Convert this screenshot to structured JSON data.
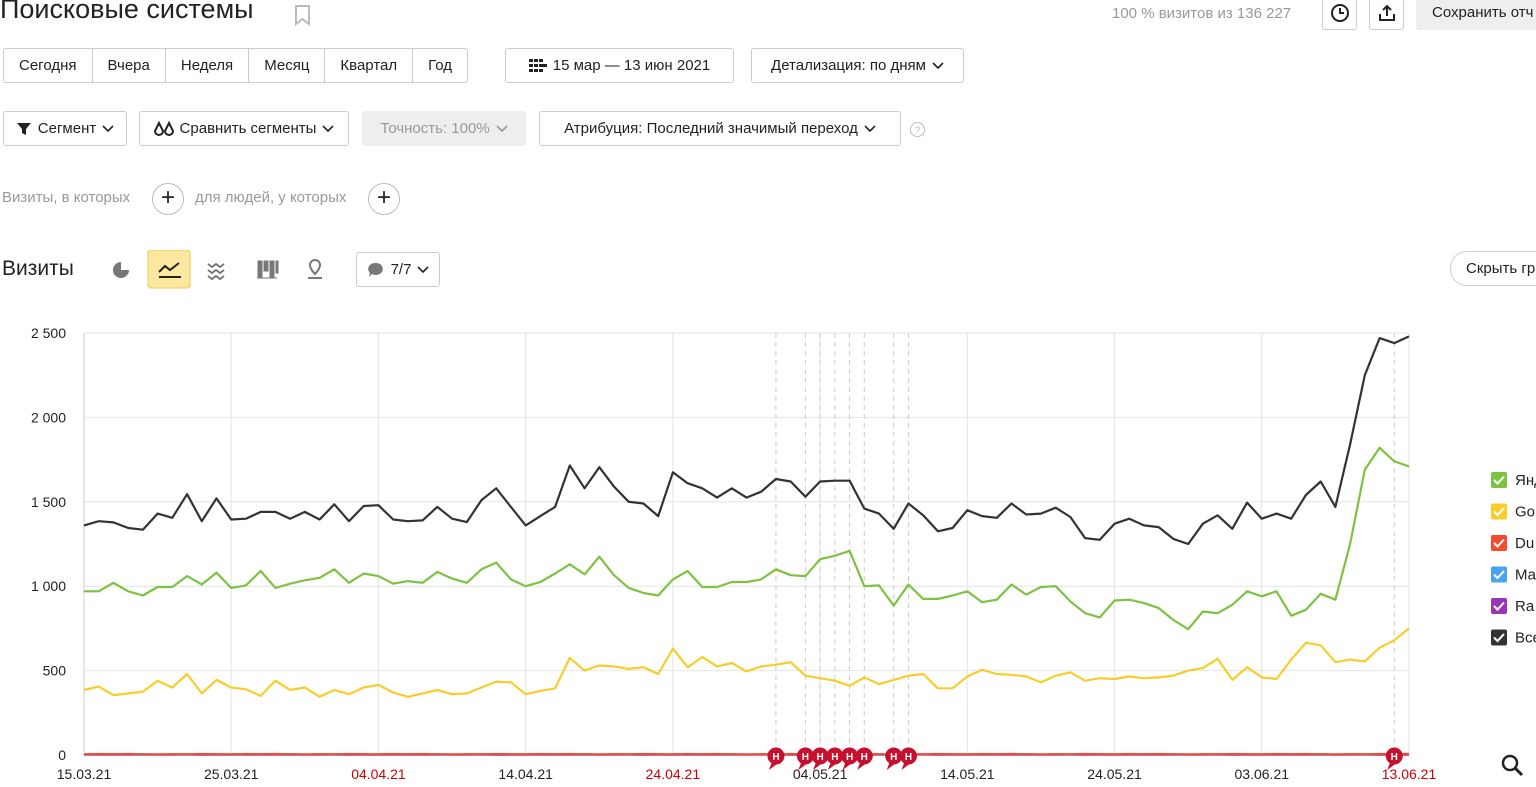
{
  "header": {
    "title": "Поисковые системы",
    "visits_share": "100 % визитов из 136 227",
    "save_button": "Сохранить отч"
  },
  "periods": [
    "Сегодня",
    "Вчера",
    "Неделя",
    "Месяц",
    "Квартал",
    "Год"
  ],
  "date_range": "15 мар — 13 июн 2021",
  "detail": "Детализация: по дням",
  "filters": {
    "segment": "Сегмент",
    "compare": "Сравнить сегменты",
    "accuracy": "Точность: 100%",
    "attribution": "Атрибуция: Последний значимый переход"
  },
  "conditions": {
    "visits": "Визиты, в которых",
    "people": "для людей, у которых"
  },
  "section": {
    "title": "Визиты",
    "annotations_toggle": "7/7",
    "hide_chart": "Скрыть гр"
  },
  "chart_data": {
    "type": "line",
    "categories": [
      "15.03.21",
      null,
      null,
      null,
      null,
      null,
      null,
      null,
      null,
      null,
      "25.03.21",
      null,
      null,
      null,
      null,
      null,
      null,
      null,
      null,
      null,
      "04.04.21",
      null,
      null,
      null,
      null,
      null,
      null,
      null,
      null,
      null,
      "14.04.21",
      null,
      null,
      null,
      null,
      null,
      null,
      null,
      null,
      null,
      "24.04.21",
      null,
      null,
      null,
      null,
      null,
      null,
      null,
      null,
      null,
      "04.05.21",
      null,
      null,
      null,
      null,
      null,
      null,
      null,
      null,
      null,
      "14.05.21",
      null,
      null,
      null,
      null,
      null,
      null,
      null,
      null,
      null,
      "24.05.21",
      null,
      null,
      null,
      null,
      null,
      null,
      null,
      null,
      null,
      "03.06.21",
      null,
      null,
      null,
      null,
      null,
      null,
      null,
      null,
      null,
      "13.06.21"
    ],
    "highlighted_categories": [
      20,
      40,
      90
    ],
    "highlight_color": "#cc0000",
    "ylim": [
      0,
      2500
    ],
    "yticks": [
      0,
      500,
      {
        "value": 1000,
        "label": "1 000"
      },
      {
        "value": 1500,
        "label": "1 500"
      },
      {
        "value": 2000,
        "label": "2 000"
      },
      {
        "value": 2500,
        "label": "2 500"
      }
    ],
    "grid": true,
    "legend": "right",
    "markers": [
      {
        "index": 47,
        "label": "Н"
      },
      {
        "index": 49,
        "label": "Н"
      },
      {
        "index": 50,
        "label": "Н"
      },
      {
        "index": 51,
        "label": "Н"
      },
      {
        "index": 52,
        "label": "Н"
      },
      {
        "index": 53,
        "label": "Н"
      },
      {
        "index": 55,
        "label": "Н"
      },
      {
        "index": 56,
        "label": "Н"
      },
      {
        "index": 89,
        "label": "Н"
      }
    ],
    "series": [
      {
        "name": "Янд",
        "color": "#7dc242",
        "values": [
          970,
          970,
          1020,
          970,
          945,
          995,
          995,
          1060,
          1010,
          1080,
          990,
          1005,
          1090,
          990,
          1015,
          1035,
          1050,
          1100,
          1020,
          1075,
          1060,
          1015,
          1030,
          1020,
          1085,
          1045,
          1020,
          1100,
          1140,
          1040,
          1000,
          1025,
          1075,
          1130,
          1070,
          1175,
          1065,
          990,
          960,
          945,
          1040,
          1090,
          995,
          995,
          1025,
          1025,
          1040,
          1100,
          1065,
          1060,
          1160,
          1180,
          1210,
          1000,
          1005,
          885,
          1010,
          925,
          925,
          945,
          970,
          905,
          920,
          1010,
          950,
          995,
          1000,
          910,
          840,
          815,
          915,
          920,
          900,
          870,
          800,
          745,
          850,
          840,
          890,
          970,
          940,
          970,
          825,
          860,
          955,
          920,
          1250,
          1690,
          1820,
          1740,
          1710
        ]
      },
      {
        "name": "Go",
        "color": "#f8cd2b",
        "values": [
          385,
          405,
          355,
          365,
          375,
          440,
          400,
          480,
          365,
          445,
          400,
          390,
          350,
          440,
          385,
          400,
          345,
          385,
          360,
          400,
          415,
          370,
          345,
          365,
          385,
          360,
          365,
          400,
          435,
          430,
          360,
          380,
          395,
          575,
          500,
          530,
          525,
          510,
          520,
          480,
          630,
          520,
          580,
          525,
          545,
          495,
          525,
          535,
          550,
          470,
          455,
          440,
          410,
          460,
          420,
          445,
          470,
          480,
          395,
          395,
          465,
          505,
          480,
          475,
          465,
          430,
          470,
          490,
          440,
          455,
          450,
          465,
          455,
          460,
          470,
          500,
          515,
          570,
          445,
          520,
          460,
          450,
          565,
          665,
          650,
          550,
          565,
          555,
          635,
          680,
          750
        ]
      },
      {
        "name": "Du",
        "color": "#f44a2e",
        "values": [
          4,
          6,
          5,
          6,
          4,
          3,
          5,
          4,
          6,
          5,
          4,
          6,
          5,
          6,
          4,
          3,
          5,
          4,
          6,
          5,
          4,
          6,
          5,
          6,
          4,
          3,
          5,
          4,
          6,
          5,
          4,
          6,
          5,
          6,
          4,
          3,
          5,
          4,
          6,
          5,
          4,
          6,
          5,
          6,
          4,
          3,
          5,
          4,
          6,
          5,
          4,
          6,
          5,
          6,
          4,
          3,
          5,
          4,
          6,
          5,
          4,
          6,
          5,
          6,
          4,
          3,
          5,
          4,
          6,
          5,
          4,
          6,
          5,
          6,
          4,
          3,
          5,
          4,
          6,
          5,
          4,
          6,
          5,
          6,
          4,
          3,
          5,
          4,
          6,
          5,
          7
        ]
      },
      {
        "name": "Ма",
        "color": "#4aa3f0",
        "values": [
          2,
          1,
          2,
          2,
          1,
          2,
          3,
          2,
          1,
          2,
          2,
          1,
          2,
          2,
          1,
          2,
          3,
          2,
          1,
          2,
          2,
          1,
          2,
          2,
          1,
          2,
          3,
          2,
          1,
          2,
          2,
          1,
          2,
          2,
          1,
          2,
          3,
          2,
          1,
          2,
          2,
          1,
          2,
          2,
          1,
          2,
          3,
          2,
          1,
          2,
          2,
          1,
          2,
          2,
          1,
          2,
          3,
          2,
          1,
          2,
          2,
          1,
          2,
          2,
          1,
          2,
          3,
          2,
          1,
          2,
          2,
          1,
          2,
          2,
          1,
          2,
          3,
          2,
          1,
          2,
          2,
          1,
          2,
          2,
          1,
          2,
          3,
          2,
          1,
          2,
          2
        ]
      },
      {
        "name": "Ra",
        "color": "#9b35b8",
        "values": [
          3,
          4,
          3,
          3,
          4,
          3,
          3,
          4,
          3,
          3,
          3,
          4,
          3,
          3,
          4,
          3,
          3,
          4,
          3,
          3,
          3,
          4,
          3,
          3,
          4,
          3,
          3,
          4,
          3,
          3,
          3,
          4,
          3,
          3,
          4,
          3,
          3,
          4,
          3,
          3,
          3,
          4,
          3,
          3,
          4,
          3,
          3,
          4,
          3,
          3,
          3,
          4,
          3,
          3,
          4,
          3,
          3,
          4,
          3,
          3,
          3,
          4,
          3,
          3,
          4,
          3,
          3,
          4,
          3,
          3,
          3,
          4,
          3,
          3,
          4,
          3,
          3,
          4,
          3,
          3,
          3,
          4,
          3,
          3,
          4,
          3,
          3,
          4,
          3,
          3,
          3
        ]
      },
      {
        "name": "Все",
        "color": "#333333",
        "values": [
          1360,
          1385,
          1378,
          1345,
          1335,
          1430,
          1405,
          1545,
          1385,
          1520,
          1395,
          1400,
          1440,
          1440,
          1400,
          1440,
          1395,
          1485,
          1385,
          1475,
          1480,
          1395,
          1385,
          1390,
          1470,
          1400,
          1380,
          1510,
          1580,
          1470,
          1360,
          1415,
          1470,
          1715,
          1580,
          1705,
          1590,
          1500,
          1490,
          1415,
          1675,
          1610,
          1580,
          1525,
          1580,
          1525,
          1560,
          1635,
          1620,
          1530,
          1620,
          1625,
          1625,
          1460,
          1430,
          1340,
          1490,
          1420,
          1325,
          1345,
          1450,
          1415,
          1405,
          1490,
          1425,
          1430,
          1465,
          1410,
          1285,
          1275,
          1370,
          1400,
          1360,
          1350,
          1280,
          1250,
          1370,
          1420,
          1340,
          1495,
          1400,
          1430,
          1400,
          1540,
          1620,
          1470,
          1840,
          2250,
          2470,
          2440,
          2480
        ]
      }
    ]
  }
}
